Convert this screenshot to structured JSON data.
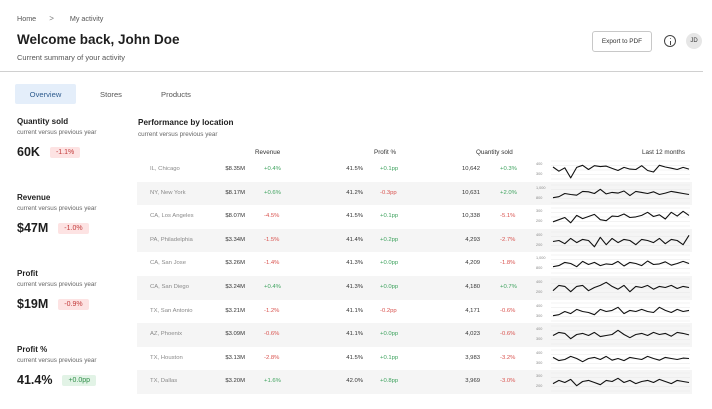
{
  "breadcrumb": {
    "home": "Home",
    "separator": ">",
    "current": "My activity"
  },
  "header": {
    "title": "Welcome back, John Doe",
    "subtitle": "Current summary of your activity",
    "export_label": "Export to PDF",
    "avatar_initials": "JD"
  },
  "tabs": [
    {
      "label": "Overview",
      "active": true
    },
    {
      "label": "Stores",
      "active": false
    },
    {
      "label": "Products",
      "active": false
    }
  ],
  "kpis": [
    {
      "label": "Quantity sold",
      "sub": "current versus previous year",
      "value": "60K",
      "delta": "-1.1%",
      "trend": "neg"
    },
    {
      "label": "Revenue",
      "sub": "current versus previous year",
      "value": "$47M",
      "delta": "-1.0%",
      "trend": "neg"
    },
    {
      "label": "Profit",
      "sub": "current versus previous year",
      "value": "$19M",
      "delta": "-0.9%",
      "trend": "neg"
    },
    {
      "label": "Profit %",
      "sub": "current versus previous year",
      "value": "41.4%",
      "delta": "+0.0pp",
      "trend": "pos"
    }
  ],
  "performance": {
    "title": "Performance by location",
    "sub": "current versus previous year",
    "columns": {
      "revenue": "Revenue",
      "profit_pct": "Profit %",
      "quantity": "Quantity sold",
      "trend": "Last 12 months"
    },
    "rows": [
      {
        "location": "IL, Chicago",
        "revenue": "$8.35M",
        "revenue_delta": "+0.4%",
        "profit_pct": "41.5%",
        "profit_delta": "+0.1pp",
        "quantity": "10,642",
        "quantity_delta": "+0.3%",
        "ticks": [
          "400",
          "300"
        ],
        "trend": [
          0.62,
          0.42,
          0.58,
          0.1,
          0.6,
          0.7,
          0.5,
          0.68,
          0.64,
          0.66,
          0.55,
          0.45,
          0.6,
          0.52,
          0.5,
          0.68,
          0.45,
          0.38,
          0.7,
          0.62,
          0.56,
          0.5,
          0.6,
          0.52
        ]
      },
      {
        "location": "NY, New York",
        "revenue": "$8.17M",
        "revenue_delta": "+0.6%",
        "profit_pct": "41.2%",
        "profit_delta": "-0.3pp",
        "quantity": "10,631",
        "quantity_delta": "+2.0%",
        "ticks": [
          "1,000",
          "800"
        ],
        "trend": [
          0.3,
          0.35,
          0.5,
          0.45,
          0.42,
          0.6,
          0.58,
          0.5,
          0.7,
          0.48,
          0.55,
          0.52,
          0.62,
          0.4,
          0.6,
          0.55,
          0.5,
          0.58,
          0.45,
          0.52,
          0.6,
          0.55,
          0.5,
          0.45
        ]
      },
      {
        "location": "CA, Los Angeles",
        "revenue": "$8.07M",
        "revenue_delta": "-4.5%",
        "profit_pct": "41.5%",
        "profit_delta": "+0.1pp",
        "quantity": "10,338",
        "quantity_delta": "-5.1%",
        "ticks": [
          "300",
          "200"
        ],
        "trend": [
          0.25,
          0.35,
          0.45,
          0.2,
          0.55,
          0.4,
          0.5,
          0.6,
          0.35,
          0.3,
          0.52,
          0.5,
          0.62,
          0.45,
          0.48,
          0.55,
          0.7,
          0.5,
          0.58,
          0.38,
          0.7,
          0.52,
          0.75,
          0.55
        ]
      },
      {
        "location": "PA, Philadelphia",
        "revenue": "$3.34M",
        "revenue_delta": "-1.5%",
        "profit_pct": "41.4%",
        "profit_delta": "+0.2pp",
        "quantity": "4,293",
        "quantity_delta": "-2.7%",
        "ticks": [
          "400",
          "200"
        ],
        "trend": [
          0.45,
          0.5,
          0.35,
          0.6,
          0.4,
          0.55,
          0.5,
          0.2,
          0.65,
          0.3,
          0.6,
          0.4,
          0.55,
          0.5,
          0.3,
          0.55,
          0.5,
          0.4,
          0.6,
          0.35,
          0.55,
          0.5,
          0.3,
          0.75
        ]
      },
      {
        "location": "CA, San Jose",
        "revenue": "$3.26M",
        "revenue_delta": "-1.4%",
        "profit_pct": "41.3%",
        "profit_delta": "+0.0pp",
        "quantity": "4,209",
        "quantity_delta": "-1.8%",
        "ticks": [
          "1,000",
          "800"
        ],
        "trend": [
          0.35,
          0.4,
          0.55,
          0.5,
          0.35,
          0.6,
          0.45,
          0.55,
          0.4,
          0.48,
          0.45,
          0.6,
          0.38,
          0.55,
          0.5,
          0.4,
          0.62,
          0.45,
          0.48,
          0.58,
          0.42,
          0.5,
          0.6,
          0.5
        ]
      },
      {
        "location": "CA, San Diego",
        "revenue": "$3.24M",
        "revenue_delta": "+0.4%",
        "profit_pct": "41.3%",
        "profit_delta": "+0.0pp",
        "quantity": "4,180",
        "quantity_delta": "+0.7%",
        "ticks": [
          "400",
          "200"
        ],
        "trend": [
          0.35,
          0.6,
          0.55,
          0.3,
          0.55,
          0.6,
          0.35,
          0.5,
          0.6,
          0.75,
          0.55,
          0.42,
          0.6,
          0.3,
          0.55,
          0.5,
          0.6,
          0.42,
          0.55,
          0.5,
          0.6,
          0.45,
          0.55,
          0.5
        ]
      },
      {
        "location": "TX, San Antonio",
        "revenue": "$3.21M",
        "revenue_delta": "-1.2%",
        "profit_pct": "41.1%",
        "profit_delta": "-0.2pp",
        "quantity": "4,171",
        "quantity_delta": "-0.6%",
        "ticks": [
          "400",
          "300"
        ],
        "trend": [
          0.3,
          0.35,
          0.5,
          0.4,
          0.6,
          0.5,
          0.45,
          0.35,
          0.6,
          0.5,
          0.55,
          0.7,
          0.4,
          0.55,
          0.5,
          0.6,
          0.5,
          0.45,
          0.7,
          0.55,
          0.45,
          0.6,
          0.5,
          0.55
        ]
      },
      {
        "location": "AZ, Phoenix",
        "revenue": "$3.09M",
        "revenue_delta": "-0.6%",
        "profit_pct": "41.1%",
        "profit_delta": "+0.0pp",
        "quantity": "4,023",
        "quantity_delta": "-0.6%",
        "ticks": [
          "400",
          "300"
        ],
        "trend": [
          0.45,
          0.6,
          0.55,
          0.3,
          0.5,
          0.55,
          0.45,
          0.6,
          0.4,
          0.45,
          0.5,
          0.7,
          0.5,
          0.35,
          0.5,
          0.55,
          0.45,
          0.6,
          0.5,
          0.55,
          0.42,
          0.6,
          0.55,
          0.48
        ]
      },
      {
        "location": "TX, Houston",
        "revenue": "$3.13M",
        "revenue_delta": "-2.8%",
        "profit_pct": "41.5%",
        "profit_delta": "+0.1pp",
        "quantity": "3,983",
        "quantity_delta": "-3.2%",
        "ticks": [
          "400",
          "300"
        ],
        "trend": [
          0.55,
          0.4,
          0.45,
          0.6,
          0.5,
          0.35,
          0.5,
          0.55,
          0.45,
          0.6,
          0.42,
          0.5,
          0.4,
          0.55,
          0.5,
          0.45,
          0.6,
          0.5,
          0.42,
          0.55,
          0.5,
          0.45,
          0.52,
          0.5
        ]
      },
      {
        "location": "TX, Dallas",
        "revenue": "$3.20M",
        "revenue_delta": "+1.6%",
        "profit_pct": "42.0%",
        "profit_delta": "+0.8pp",
        "quantity": "3,969",
        "quantity_delta": "-3.0%",
        "ticks": [
          "300",
          "200"
        ],
        "trend": [
          0.4,
          0.55,
          0.45,
          0.6,
          0.3,
          0.5,
          0.55,
          0.45,
          0.35,
          0.55,
          0.5,
          0.65,
          0.45,
          0.55,
          0.4,
          0.5,
          0.55,
          0.45,
          0.6,
          0.5,
          0.4,
          0.55,
          0.5,
          0.45
        ]
      }
    ]
  },
  "colors": {
    "positive": "#3fa35f",
    "negative": "#d9534f",
    "active_tab_bg": "#e4eefa",
    "active_tab_text": "#2f5c8e",
    "row_shade": "#f5f5f5"
  }
}
